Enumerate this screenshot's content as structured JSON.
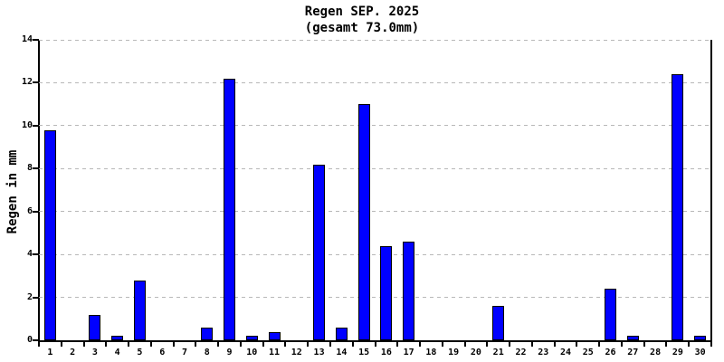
{
  "chart_data": {
    "type": "bar",
    "title": "Regen SEP. 2025",
    "subtitle": "(gesamt 73.0mm)",
    "total_label": "73.0mm",
    "xlabel": "",
    "ylabel": "Regen in mm",
    "ylim": [
      0,
      14
    ],
    "yticks": [
      0,
      2,
      4,
      6,
      8,
      10,
      12,
      14
    ],
    "grid": true,
    "legend": "none",
    "categories": [
      "1",
      "2",
      "3",
      "4",
      "5",
      "6",
      "7",
      "8",
      "9",
      "10",
      "11",
      "12",
      "13",
      "14",
      "15",
      "16",
      "17",
      "18",
      "19",
      "20",
      "21",
      "22",
      "23",
      "24",
      "25",
      "26",
      "27",
      "28",
      "29",
      "30"
    ],
    "values": [
      9.8,
      0,
      1.2,
      0.2,
      2.8,
      0,
      0,
      0.6,
      12.2,
      0.2,
      0.4,
      0,
      8.2,
      0.6,
      11.0,
      4.4,
      4.6,
      0,
      0,
      0,
      1.6,
      0,
      0,
      0,
      0,
      2.4,
      0.2,
      0,
      12.4,
      0.2
    ],
    "bar_color": "#0000ff",
    "bar_border_color": "#000000",
    "grid_color": "#b8b8b8",
    "axis_color": "#000000",
    "text_color": "#000000",
    "background": "#ffffff"
  }
}
